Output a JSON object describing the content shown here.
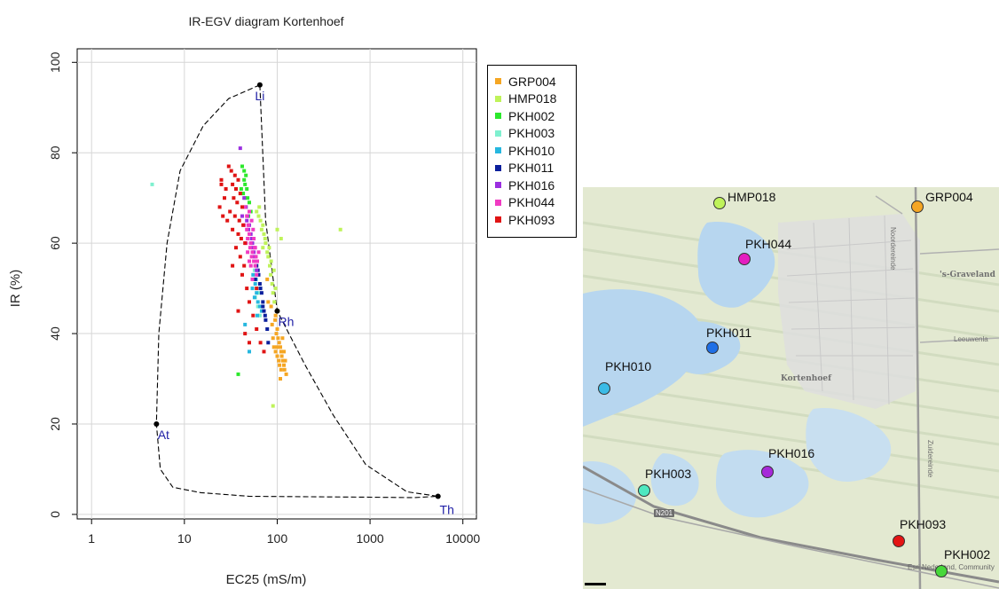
{
  "chart_data": {
    "type": "scatter",
    "title": "IR-EGV diagram Kortenhoef",
    "xlabel": "EC25 (mS/m)",
    "ylabel": "IR (%)",
    "x_scale": "log",
    "xlim": [
      0.7,
      14000
    ],
    "ylim": [
      -1,
      103
    ],
    "x_ticks": [
      1,
      10,
      100,
      1000,
      10000
    ],
    "x_tick_labels": [
      "1",
      "10",
      "100",
      "1000",
      "10000"
    ],
    "y_ticks": [
      0,
      20,
      40,
      60,
      80,
      100
    ],
    "y_tick_labels": [
      "0",
      "20",
      "40",
      "60",
      "80",
      "100"
    ],
    "grid": true,
    "legend_position": "right",
    "reference_points": [
      {
        "label": "Li",
        "x": 65,
        "y": 95
      },
      {
        "label": "Rh",
        "x": 100,
        "y": 45
      },
      {
        "label": "At",
        "x": 5,
        "y": 20
      },
      {
        "label": "Th",
        "x": 5400,
        "y": 4
      }
    ],
    "envelope": [
      [
        65,
        95
      ],
      [
        30,
        92
      ],
      [
        16,
        86
      ],
      [
        9,
        76
      ],
      [
        6.5,
        60
      ],
      [
        5.3,
        40
      ],
      [
        5,
        20
      ],
      [
        5.5,
        10
      ],
      [
        7.5,
        6
      ],
      [
        15,
        4.8
      ],
      [
        50,
        4
      ],
      [
        1000,
        3.8
      ],
      [
        3000,
        3.7
      ],
      [
        5400,
        4
      ],
      [
        2500,
        5
      ],
      [
        900,
        11
      ],
      [
        400,
        22
      ],
      [
        200,
        33
      ],
      [
        100,
        45
      ],
      [
        75,
        65
      ],
      [
        65,
        95
      ]
    ],
    "series": [
      {
        "name": "GRP004",
        "color": "#f5a623",
        "points": [
          [
            95,
            43
          ],
          [
            100,
            41
          ],
          [
            102,
            39
          ],
          [
            105,
            38
          ],
          [
            108,
            37
          ],
          [
            110,
            36
          ],
          [
            112,
            35
          ],
          [
            115,
            34
          ],
          [
            118,
            33
          ],
          [
            120,
            32
          ],
          [
            125,
            31
          ],
          [
            98,
            40
          ],
          [
            92,
            37
          ],
          [
            88,
            42
          ],
          [
            96,
            36
          ],
          [
            104,
            34
          ],
          [
            110,
            32
          ],
          [
            114,
            39
          ],
          [
            90,
            39
          ],
          [
            100,
            35
          ],
          [
            106,
            33
          ],
          [
            118,
            36
          ],
          [
            122,
            34
          ],
          [
            86,
            46
          ],
          [
            96,
            44
          ],
          [
            80,
            47
          ],
          [
            78,
            52
          ],
          [
            108,
            30
          ],
          [
            100,
            37
          ]
        ]
      },
      {
        "name": "HMP018",
        "color": "#bff35a",
        "points": [
          [
            60,
            67
          ],
          [
            63,
            66
          ],
          [
            66,
            65
          ],
          [
            70,
            64
          ],
          [
            72,
            62
          ],
          [
            75,
            60
          ],
          [
            78,
            58
          ],
          [
            80,
            57
          ],
          [
            83,
            55
          ],
          [
            85,
            53
          ],
          [
            88,
            51
          ],
          [
            90,
            49
          ],
          [
            93,
            47
          ],
          [
            68,
            63
          ],
          [
            74,
            61
          ],
          [
            82,
            59
          ],
          [
            86,
            56
          ],
          [
            92,
            54
          ],
          [
            96,
            50
          ],
          [
            480,
            63
          ],
          [
            90,
            24
          ],
          [
            110,
            61
          ],
          [
            100,
            63
          ],
          [
            64,
            68
          ],
          [
            70,
            59
          ]
        ]
      },
      {
        "name": "PKH002",
        "color": "#2ce82c",
        "points": [
          [
            42,
            77
          ],
          [
            44,
            76
          ],
          [
            46,
            75
          ],
          [
            45,
            73
          ],
          [
            47,
            72
          ],
          [
            43,
            71
          ],
          [
            48,
            70
          ],
          [
            50,
            69
          ],
          [
            46,
            68
          ],
          [
            52,
            67
          ],
          [
            49,
            66
          ],
          [
            44,
            74
          ],
          [
            41,
            72
          ],
          [
            38,
            31
          ],
          [
            45,
            70
          ]
        ]
      },
      {
        "name": "PKH003",
        "color": "#7ff0cf",
        "points": [
          [
            4.5,
            73
          ],
          [
            55,
            52
          ],
          [
            60,
            50
          ],
          [
            58,
            48
          ],
          [
            62,
            46
          ],
          [
            65,
            44
          ],
          [
            57,
            54
          ],
          [
            50,
            56
          ],
          [
            63,
            49
          ]
        ]
      },
      {
        "name": "PKH010",
        "color": "#26b7df",
        "points": [
          [
            55,
            53
          ],
          [
            58,
            51
          ],
          [
            60,
            49
          ],
          [
            62,
            47
          ],
          [
            65,
            46
          ],
          [
            68,
            45
          ],
          [
            54,
            50
          ],
          [
            57,
            48
          ],
          [
            61,
            44
          ],
          [
            59,
            52
          ],
          [
            50,
            36
          ],
          [
            45,
            42
          ]
        ]
      },
      {
        "name": "PKH011",
        "color": "#0b1f9c",
        "points": [
          [
            60,
            55
          ],
          [
            63,
            53
          ],
          [
            65,
            51
          ],
          [
            68,
            49
          ],
          [
            70,
            47
          ],
          [
            72,
            45
          ],
          [
            75,
            43
          ],
          [
            78,
            41
          ],
          [
            58,
            52
          ],
          [
            66,
            50
          ],
          [
            74,
            44
          ],
          [
            80,
            38
          ],
          [
            62,
            54
          ],
          [
            70,
            46
          ]
        ]
      },
      {
        "name": "PKH016",
        "color": "#9b2fe0",
        "points": [
          [
            40,
            81
          ],
          [
            44,
            70
          ],
          [
            46,
            68
          ],
          [
            48,
            66
          ],
          [
            50,
            64
          ],
          [
            52,
            62
          ],
          [
            54,
            60
          ],
          [
            56,
            58
          ],
          [
            58,
            56
          ],
          [
            60,
            54
          ],
          [
            47,
            65
          ],
          [
            53,
            61
          ],
          [
            57,
            57
          ],
          [
            42,
            66
          ],
          [
            49,
            63
          ],
          [
            55,
            59
          ]
        ]
      },
      {
        "name": "PKH044",
        "color": "#f03bc2",
        "points": [
          [
            45,
            68
          ],
          [
            47,
            66
          ],
          [
            49,
            64
          ],
          [
            50,
            62
          ],
          [
            52,
            60
          ],
          [
            54,
            58
          ],
          [
            56,
            56
          ],
          [
            58,
            55
          ],
          [
            60,
            53
          ],
          [
            48,
            61
          ],
          [
            51,
            59
          ],
          [
            53,
            57
          ],
          [
            55,
            63
          ],
          [
            46,
            60
          ],
          [
            57,
            59
          ],
          [
            59,
            57
          ],
          [
            44,
            64
          ],
          [
            50,
            67
          ],
          [
            53,
            65
          ],
          [
            56,
            61
          ],
          [
            58,
            59
          ],
          [
            61,
            56
          ],
          [
            48,
            58
          ],
          [
            52,
            55
          ],
          [
            47,
            63
          ],
          [
            63,
            58
          ],
          [
            54,
            52
          ],
          [
            50,
            56
          ]
        ]
      },
      {
        "name": "PKH093",
        "color": "#e01414",
        "points": [
          [
            30,
            77
          ],
          [
            32,
            76
          ],
          [
            35,
            75
          ],
          [
            38,
            74
          ],
          [
            33,
            73
          ],
          [
            36,
            72
          ],
          [
            40,
            71
          ],
          [
            34,
            70
          ],
          [
            37,
            69
          ],
          [
            42,
            68
          ],
          [
            31,
            67
          ],
          [
            35,
            66
          ],
          [
            39,
            65
          ],
          [
            43,
            64
          ],
          [
            33,
            63
          ],
          [
            38,
            62
          ],
          [
            41,
            61
          ],
          [
            45,
            60
          ],
          [
            28,
            72
          ],
          [
            27,
            70
          ],
          [
            25,
            74
          ],
          [
            24,
            68
          ],
          [
            29,
            65
          ],
          [
            36,
            59
          ],
          [
            40,
            57
          ],
          [
            44,
            55
          ],
          [
            42,
            53
          ],
          [
            47,
            50
          ],
          [
            50,
            47
          ],
          [
            55,
            44
          ],
          [
            60,
            41
          ],
          [
            66,
            38
          ],
          [
            72,
            36
          ],
          [
            50,
            38
          ],
          [
            45,
            40
          ],
          [
            38,
            45
          ],
          [
            60,
            50
          ],
          [
            25,
            73
          ],
          [
            26,
            66
          ],
          [
            33,
            55
          ]
        ]
      }
    ]
  },
  "legend": {
    "items": [
      {
        "label": "GRP004",
        "color": "#f5a623"
      },
      {
        "label": "HMP018",
        "color": "#bff35a"
      },
      {
        "label": "PKH002",
        "color": "#2ce82c"
      },
      {
        "label": "PKH003",
        "color": "#7ff0cf"
      },
      {
        "label": "PKH010",
        "color": "#26b7df"
      },
      {
        "label": "PKH011",
        "color": "#0b1f9c"
      },
      {
        "label": "PKH016",
        "color": "#9b2fe0"
      },
      {
        "label": "PKH044",
        "color": "#f03bc2"
      },
      {
        "label": "PKH093",
        "color": "#e01414"
      }
    ]
  },
  "map": {
    "place_labels": {
      "graveland": "'s-Graveland",
      "kortenhoef": "Kortenhoef",
      "leeuwenlaan": "Leeuwenla",
      "noordereinde": "Noordereinde",
      "zuidereinde": "Zuidereinde"
    },
    "road_label": "N201",
    "attribution": "Esri Nederland, Community",
    "sites": [
      {
        "label": "HMP018",
        "color": "#bff35a"
      },
      {
        "label": "GRP004",
        "color": "#f5a623"
      },
      {
        "label": "PKH044",
        "color": "#e41fc0"
      },
      {
        "label": "PKH011",
        "color": "#1f6fe6"
      },
      {
        "label": "PKH010",
        "color": "#3bbbe6"
      },
      {
        "label": "PKH016",
        "color": "#a629d9"
      },
      {
        "label": "PKH003",
        "color": "#4ee8c0"
      },
      {
        "label": "PKH093",
        "color": "#e41414"
      },
      {
        "label": "PKH002",
        "color": "#47d83a"
      }
    ]
  }
}
